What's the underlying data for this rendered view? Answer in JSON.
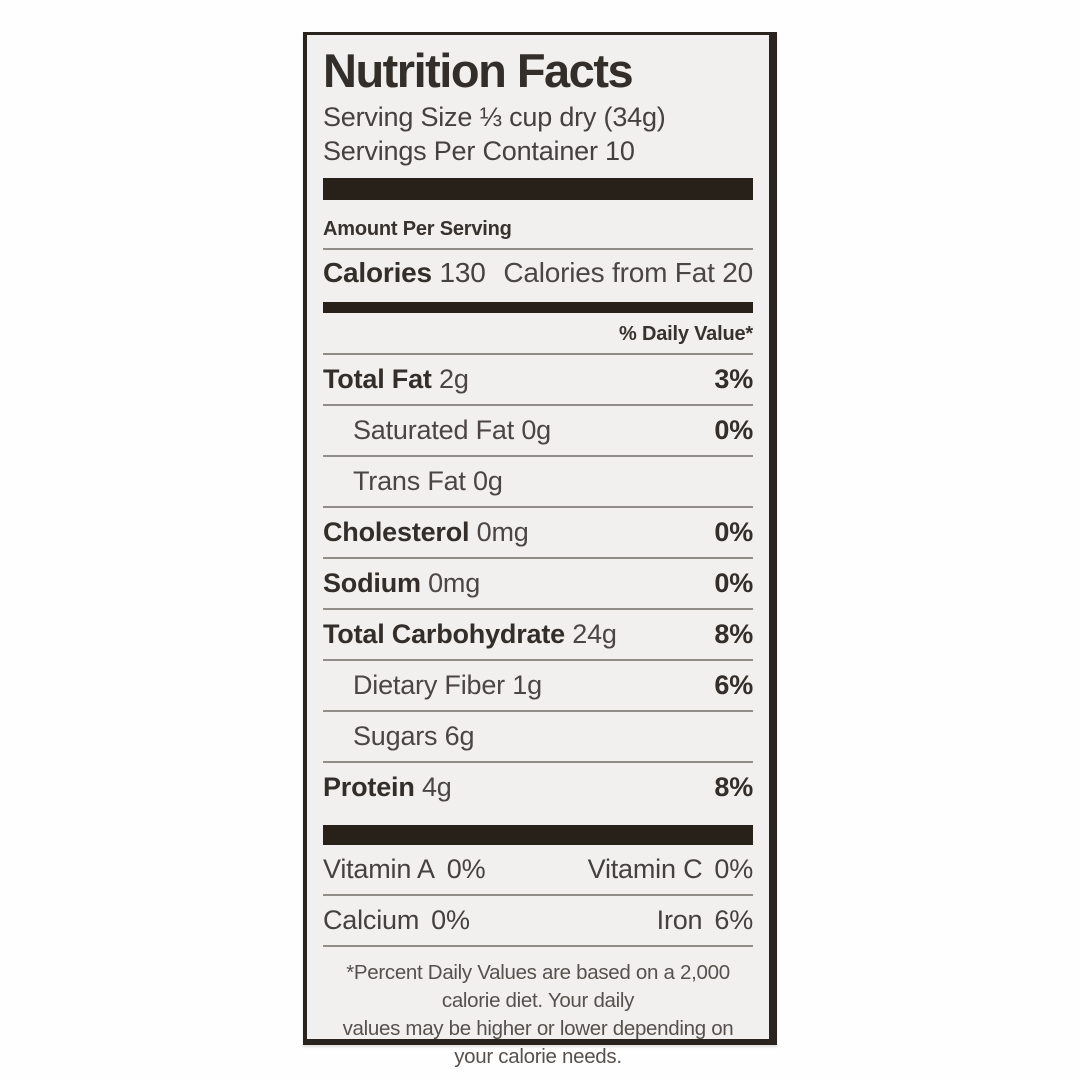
{
  "colors": {
    "page_bg": "#ffffff",
    "label_bg": "#f1f0ee",
    "border": "#2b241e",
    "bar": "#28211a",
    "rule": "#8f8c88",
    "text_bold": "#332e29",
    "text_regular": "#4b4643"
  },
  "header": {
    "title": "Nutrition Facts",
    "serving_size": "Serving Size ⅓ cup dry (34g)",
    "servings_per_container": "Servings Per Container 10"
  },
  "calories_section": {
    "amount_per_serving": "Amount Per Serving",
    "calories_label": "Calories",
    "calories_value": "130",
    "calories_from_fat": "Calories from Fat 20"
  },
  "daily_value_header": "% Daily Value*",
  "nutrients": [
    {
      "name": "Total Fat",
      "amount": "2g",
      "dv": "3%"
    },
    {
      "name": "Saturated Fat",
      "amount": "0g",
      "dv": "0%"
    },
    {
      "name": "Trans Fat",
      "amount": "0g",
      "dv": ""
    },
    {
      "name": "Cholesterol",
      "amount": "0mg",
      "dv": "0%"
    },
    {
      "name": "Sodium",
      "amount": "0mg",
      "dv": "0%"
    },
    {
      "name": "Total Carbohydrate",
      "amount": "24g",
      "dv": "8%"
    },
    {
      "name": "Dietary Fiber",
      "amount": "1g",
      "dv": "6%"
    },
    {
      "name": "Sugars",
      "amount": "6g",
      "dv": ""
    },
    {
      "name": "Protein",
      "amount": "4g",
      "dv": "8%"
    }
  ],
  "micronutrients": [
    {
      "name": "Vitamin A",
      "value": "0%"
    },
    {
      "name": "Vitamin C",
      "value": "0%"
    },
    {
      "name": "Calcium",
      "value": "0%"
    },
    {
      "name": "Iron",
      "value": "6%"
    }
  ],
  "footnote": {
    "line1": "*Percent Daily Values are based on a 2,000 calorie diet. Your daily",
    "line2": "values may be higher or lower depending on your calorie needs."
  }
}
